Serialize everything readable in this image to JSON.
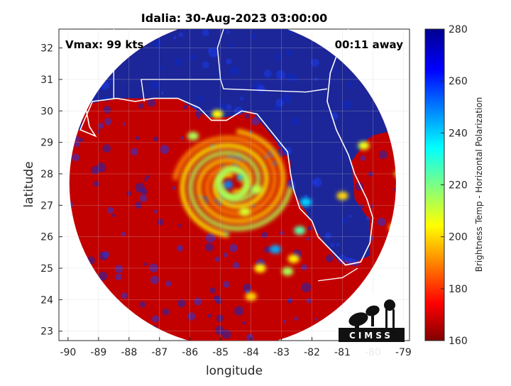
{
  "chart_data": {
    "type": "heatmap",
    "title": "Idalia: 30-Aug-2023 03:00:00",
    "xlabel": "longitude",
    "ylabel": "latitude",
    "xlim": [
      -90.3,
      -78.8
    ],
    "ylim": [
      22.7,
      32.6
    ],
    "xticks": [
      -90,
      -89,
      -88,
      -87,
      -86,
      -85,
      -84,
      -83,
      -82,
      -81,
      -80,
      -79
    ],
    "yticks": [
      23,
      24,
      25,
      26,
      27,
      28,
      29,
      30,
      31,
      32
    ],
    "annotations": {
      "vmax": "Vmax: 99 kts",
      "away": "00:11 away"
    },
    "colorbar": {
      "label": "Brightness Temp - Horizontal Polarization",
      "min": 160,
      "max": 280,
      "ticks": [
        160,
        180,
        200,
        220,
        240,
        260,
        280
      ],
      "colormap": "jet"
    },
    "swath": {
      "center_lon": -84.6,
      "center_lat": 27.7,
      "radius_deg": 5.2,
      "background_temp": 272,
      "hurricane_eye": {
        "lon": -84.6,
        "lat": 27.7,
        "min_temp": 190
      }
    },
    "logo_text": "CIMSS",
    "grid": true
  }
}
